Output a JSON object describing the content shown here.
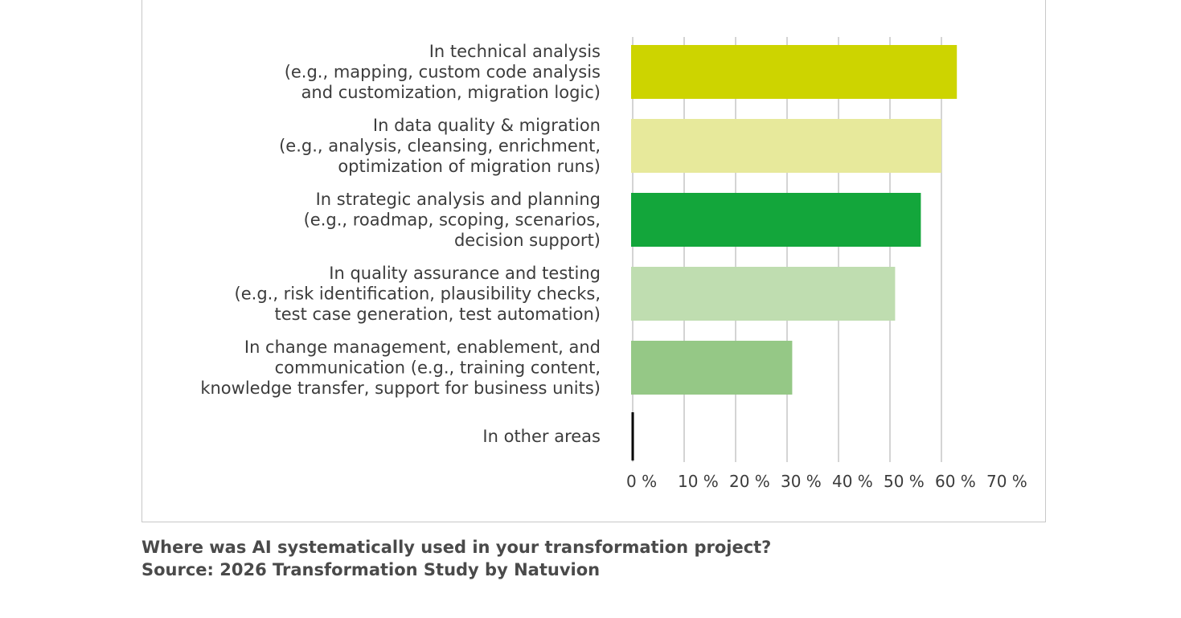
{
  "caption": {
    "question": "Where was AI systematically used in your transformation project?",
    "source": "Source: 2026 Transformation Study by Natuvion"
  },
  "chart_data": {
    "type": "bar",
    "orientation": "horizontal",
    "categories": [
      [
        "In technical analysis",
        "(e.g., mapping, custom code analysis",
        "and customization, migration logic)"
      ],
      [
        "In data quality & migration",
        "(e.g., analysis, cleansing, enrichment,",
        "optimization of migration runs)"
      ],
      [
        "In strategic analysis and planning",
        "(e.g., roadmap, scoping, scenarios,",
        "decision support)"
      ],
      [
        "In quality assurance and testing",
        "(e.g., risk identification, plausibility checks,",
        "test case generation, test automation)"
      ],
      [
        "In change management, enablement, and",
        "communication (e.g., training content,",
        "knowledge transfer, support for business units)"
      ],
      [
        "In other areas"
      ]
    ],
    "values": [
      63,
      60,
      56,
      51,
      31,
      0
    ],
    "colors": [
      "#cdd400",
      "#e7e99b",
      "#13a63b",
      "#bfddb0",
      "#95c886",
      "#000000"
    ],
    "xlim": [
      0,
      70
    ],
    "xticks": [
      0,
      10,
      20,
      30,
      40,
      50,
      60,
      70
    ],
    "xtick_labels": [
      "0 %",
      "10 %",
      "20 %",
      "30 %",
      "40 %",
      "50 %",
      "60 %",
      "70 %"
    ],
    "grid": true,
    "gridline_color": "#bdbdbd"
  }
}
